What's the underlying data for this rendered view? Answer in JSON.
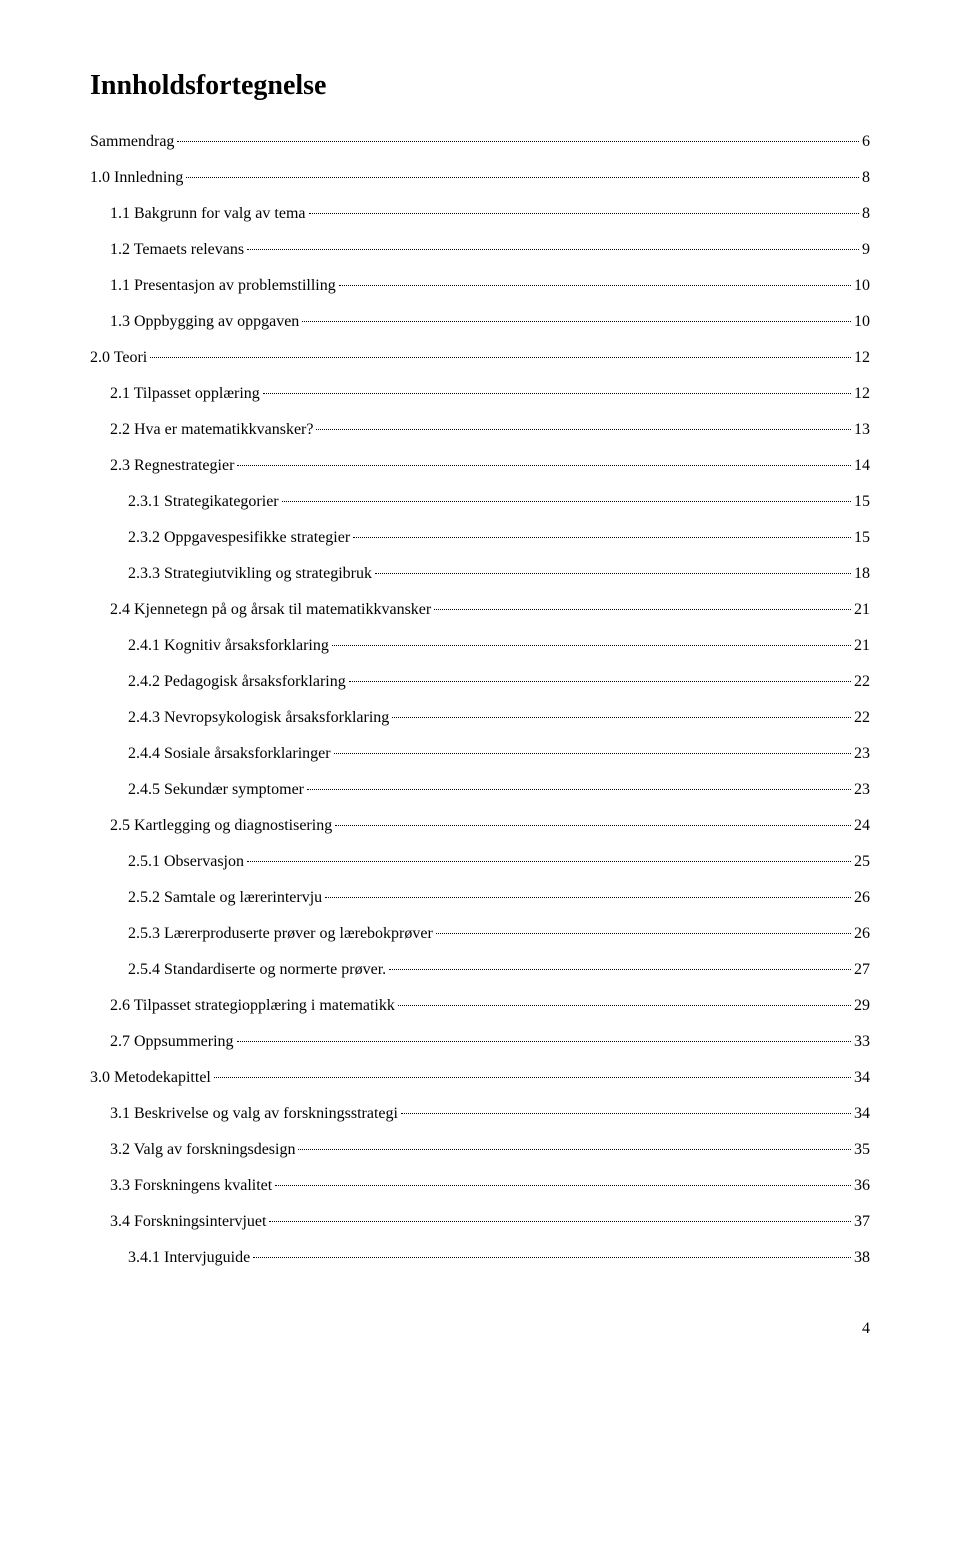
{
  "title": "Innholdsfortegnelse",
  "footer_page": "4",
  "entries": [
    {
      "label": "Sammendrag",
      "page": "6",
      "indent": 0
    },
    {
      "label": "1.0 Innledning",
      "page": "8",
      "indent": 0
    },
    {
      "label": "1.1 Bakgrunn for valg av tema",
      "page": "8",
      "indent": 1
    },
    {
      "label": "1.2 Temaets relevans",
      "page": "9",
      "indent": 1
    },
    {
      "label": "1.1 Presentasjon av problemstilling",
      "page": "10",
      "indent": 1
    },
    {
      "label": "1.3 Oppbygging av oppgaven",
      "page": "10",
      "indent": 1
    },
    {
      "label": "2.0 Teori",
      "page": "12",
      "indent": 0
    },
    {
      "label": "2.1 Tilpasset opplæring",
      "page": "12",
      "indent": 1
    },
    {
      "label": "2.2 Hva er matematikkvansker?",
      "page": "13",
      "indent": 1
    },
    {
      "label": "2.3 Regnestrategier",
      "page": "14",
      "indent": 1
    },
    {
      "label": "2.3.1 Strategikategorier",
      "page": "15",
      "indent": 2
    },
    {
      "label": "2.3.2 Oppgavespesifikke strategier",
      "page": "15",
      "indent": 2
    },
    {
      "label": "2.3.3 Strategiutvikling og strategibruk",
      "page": "18",
      "indent": 2
    },
    {
      "label": "2.4 Kjennetegn på og årsak til matematikkvansker",
      "page": "21",
      "indent": 1
    },
    {
      "label": "2.4.1 Kognitiv årsaksforklaring",
      "page": "21",
      "indent": 2
    },
    {
      "label": "2.4.2 Pedagogisk årsaksforklaring",
      "page": "22",
      "indent": 2
    },
    {
      "label": "2.4.3 Nevropsykologisk årsaksforklaring",
      "page": "22",
      "indent": 2
    },
    {
      "label": "2.4.4 Sosiale årsaksforklaringer",
      "page": "23",
      "indent": 2
    },
    {
      "label": "2.4.5 Sekundær symptomer",
      "page": "23",
      "indent": 2
    },
    {
      "label": "2.5 Kartlegging og diagnostisering",
      "page": "24",
      "indent": 1
    },
    {
      "label": "2.5.1 Observasjon",
      "page": "25",
      "indent": 2
    },
    {
      "label": "2.5.2 Samtale og lærerintervju",
      "page": "26",
      "indent": 2
    },
    {
      "label": "2.5.3 Lærerproduserte prøver og lærebokprøver",
      "page": "26",
      "indent": 2
    },
    {
      "label": "2.5.4 Standardiserte og normerte prøver.",
      "page": "27",
      "indent": 2
    },
    {
      "label": "2.6 Tilpasset strategiopplæring i matematikk",
      "page": "29",
      "indent": 1
    },
    {
      "label": "2.7 Oppsummering",
      "page": "33",
      "indent": 1
    },
    {
      "label": "3.0 Metodekapittel",
      "page": "34",
      "indent": 0
    },
    {
      "label": "3.1 Beskrivelse og valg av forskningsstrategi",
      "page": "34",
      "indent": 1
    },
    {
      "label": "3.2 Valg av forskningsdesign",
      "page": "35",
      "indent": 1
    },
    {
      "label": "3.3 Forskningens kvalitet",
      "page": "36",
      "indent": 1
    },
    {
      "label": "3.4 Forskningsintervjuet",
      "page": "37",
      "indent": 1
    },
    {
      "label": "3.4.1 Intervjuguide",
      "page": "38",
      "indent": 2
    }
  ]
}
